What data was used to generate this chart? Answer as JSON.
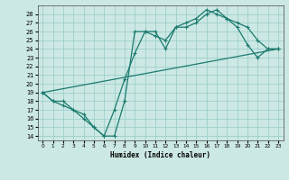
{
  "xlabel": "Humidex (Indice chaleur)",
  "background_color": "#cce8e4",
  "grid_color": "#9ecfca",
  "line_color": "#1a7a6e",
  "xlim": [
    -0.5,
    23.5
  ],
  "ylim": [
    13.5,
    29.0
  ],
  "xticks": [
    0,
    1,
    2,
    3,
    4,
    5,
    6,
    7,
    8,
    9,
    10,
    11,
    12,
    13,
    14,
    15,
    16,
    17,
    18,
    19,
    20,
    21,
    22,
    23
  ],
  "yticks": [
    14,
    15,
    16,
    17,
    18,
    19,
    20,
    21,
    22,
    23,
    24,
    25,
    26,
    27,
    28
  ],
  "line1_x": [
    0,
    1,
    2,
    3,
    4,
    5,
    6,
    7,
    8,
    9,
    10,
    11,
    12,
    13,
    14,
    15,
    16,
    17,
    18,
    19,
    20,
    21,
    22,
    23
  ],
  "line1_y": [
    19,
    18,
    18,
    17,
    16,
    15,
    14,
    14,
    18,
    26,
    26,
    25.5,
    25,
    26.5,
    27,
    27.5,
    28.5,
    28,
    27.5,
    26.5,
    24.5,
    23,
    24,
    24
  ],
  "line2_x": [
    0,
    1,
    2,
    3,
    4,
    5,
    6,
    7,
    8,
    9,
    10,
    11,
    12,
    13,
    14,
    15,
    16,
    17,
    18,
    19,
    20,
    21,
    22,
    23
  ],
  "line2_y": [
    19,
    18,
    17.5,
    17,
    16.5,
    15,
    14,
    17,
    20.5,
    23.5,
    26,
    26,
    24,
    26.5,
    26.5,
    27,
    28,
    28.5,
    27.5,
    27,
    26.5,
    25,
    24,
    24
  ],
  "line3_x": [
    0,
    23
  ],
  "line3_y": [
    19,
    24
  ]
}
